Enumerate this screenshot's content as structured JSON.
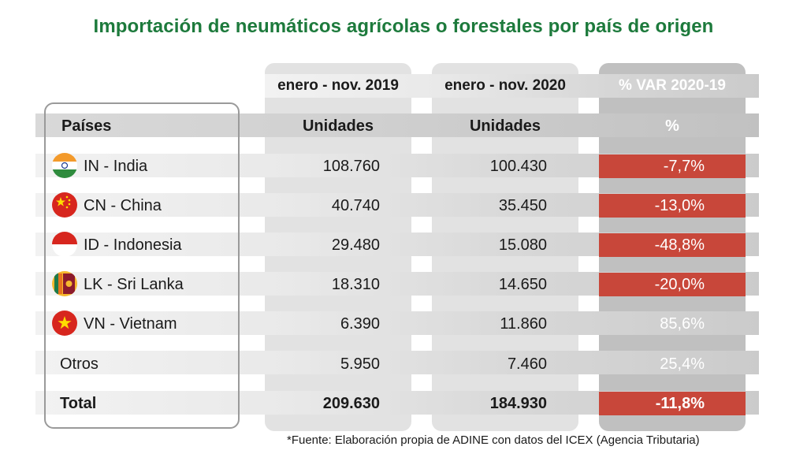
{
  "title": "Importación de neumáticos agrícolas o forestales por país de origen",
  "columns": {
    "period_2019": "enero - nov. 2019",
    "period_2020": "enero - nov. 2020",
    "var": "% VAR 2020-19",
    "countries_header": "Países",
    "units_2019": "Unidades",
    "units_2020": "Unidades",
    "var_unit": "%"
  },
  "rows": [
    {
      "country": "IN - India",
      "flag": "india-flag-icon",
      "v2019": "108.760",
      "v2020": "100.430",
      "var": "-7,7%",
      "negative": true
    },
    {
      "country": "CN - China",
      "flag": "china-flag-icon",
      "v2019": "40.740",
      "v2020": "35.450",
      "var": "-13,0%",
      "negative": true
    },
    {
      "country": "ID - Indonesia",
      "flag": "indonesia-flag-icon",
      "v2019": "29.480",
      "v2020": "15.080",
      "var": "-48,8%",
      "negative": true
    },
    {
      "country": "LK - Sri Lanka",
      "flag": "sri-lanka-flag-icon",
      "v2019": "18.310",
      "v2020": "14.650",
      "var": "-20,0%",
      "negative": true
    },
    {
      "country": "VN - Vietnam",
      "flag": "vietnam-flag-icon",
      "v2019": "6.390",
      "v2020": "11.860",
      "var": "85,6%",
      "negative": false
    },
    {
      "country": "Otros",
      "flag": "",
      "v2019": "5.950",
      "v2020": "7.460",
      "var": "25,4%",
      "negative": false
    }
  ],
  "total": {
    "label": "Total",
    "v2019": "209.630",
    "v2020": "184.930",
    "var": "-11,8%",
    "negative": true
  },
  "colors": {
    "title": "#1d7a3c",
    "negative_bg": "#c8473a"
  },
  "footnote": "*Fuente: Elaboración propia de ADINE con datos del ICEX (Agencia Tributaria)"
}
